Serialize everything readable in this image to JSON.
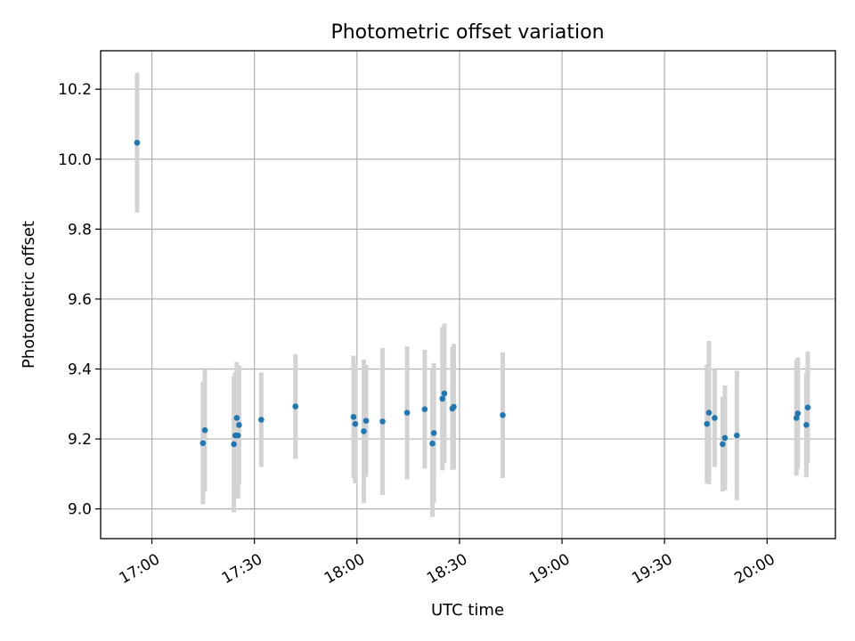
{
  "chart_data": {
    "type": "scatter",
    "title": "Photometric offset variation",
    "xlabel": "UTC time",
    "ylabel": "Photometric offset",
    "grid": true,
    "error_bars": true,
    "xlim": [
      "16:45",
      "20:20"
    ],
    "ylim": [
      8.915,
      10.31
    ],
    "xticks": [
      "17:00",
      "17:30",
      "18:00",
      "18:30",
      "19:00",
      "19:30",
      "20:00"
    ],
    "yticks": [
      "9.0",
      "9.2",
      "9.4",
      "9.6",
      "9.8",
      "10.0",
      "10.2"
    ],
    "colors": {
      "marker": "#1f77b4",
      "errorbar": "#d3d3d3",
      "grid": "#b0b0b0"
    },
    "series": [
      {
        "points": [
          {
            "x": "16:55:40",
            "y": 10.047,
            "err": 0.2
          },
          {
            "x": "17:14:55",
            "y": 9.188,
            "err": 0.175
          },
          {
            "x": "17:15:30",
            "y": 9.225,
            "err": 0.175
          },
          {
            "x": "17:24:00",
            "y": 9.185,
            "err": 0.195
          },
          {
            "x": "17:24:25",
            "y": 9.21,
            "err": 0.18
          },
          {
            "x": "17:24:50",
            "y": 9.26,
            "err": 0.16
          },
          {
            "x": "17:25:10",
            "y": 9.21,
            "err": 0.18
          },
          {
            "x": "17:25:30",
            "y": 9.24,
            "err": 0.17
          },
          {
            "x": "17:32:00",
            "y": 9.255,
            "err": 0.135
          },
          {
            "x": "17:42:00",
            "y": 9.293,
            "err": 0.15
          },
          {
            "x": "17:59:00",
            "y": 9.263,
            "err": 0.175
          },
          {
            "x": "17:59:30",
            "y": 9.243,
            "err": 0.17
          },
          {
            "x": "18:02:00",
            "y": 9.222,
            "err": 0.205
          },
          {
            "x": "18:02:40",
            "y": 9.252,
            "err": 0.16
          },
          {
            "x": "18:07:30",
            "y": 9.25,
            "err": 0.21
          },
          {
            "x": "18:14:40",
            "y": 9.275,
            "err": 0.19
          },
          {
            "x": "18:19:50",
            "y": 9.285,
            "err": 0.17
          },
          {
            "x": "18:22:05",
            "y": 9.187,
            "err": 0.21
          },
          {
            "x": "18:22:30",
            "y": 9.217,
            "err": 0.2
          },
          {
            "x": "18:25:00",
            "y": 9.315,
            "err": 0.205
          },
          {
            "x": "18:25:35",
            "y": 9.33,
            "err": 0.2
          },
          {
            "x": "18:27:55",
            "y": 9.287,
            "err": 0.175
          },
          {
            "x": "18:28:20",
            "y": 9.292,
            "err": 0.18
          },
          {
            "x": "18:42:40",
            "y": 9.268,
            "err": 0.18
          },
          {
            "x": "19:42:25",
            "y": 9.243,
            "err": 0.17
          },
          {
            "x": "19:43:00",
            "y": 9.275,
            "err": 0.205
          },
          {
            "x": "19:44:40",
            "y": 9.26,
            "err": 0.14
          },
          {
            "x": "19:47:00",
            "y": 9.185,
            "err": 0.135
          },
          {
            "x": "19:47:40",
            "y": 9.203,
            "err": 0.15
          },
          {
            "x": "19:51:10",
            "y": 9.21,
            "err": 0.185
          },
          {
            "x": "20:08:35",
            "y": 9.26,
            "err": 0.165
          },
          {
            "x": "20:09:00",
            "y": 9.273,
            "err": 0.16
          },
          {
            "x": "20:11:30",
            "y": 9.24,
            "err": 0.15
          },
          {
            "x": "20:11:55",
            "y": 9.29,
            "err": 0.16
          }
        ]
      }
    ]
  }
}
